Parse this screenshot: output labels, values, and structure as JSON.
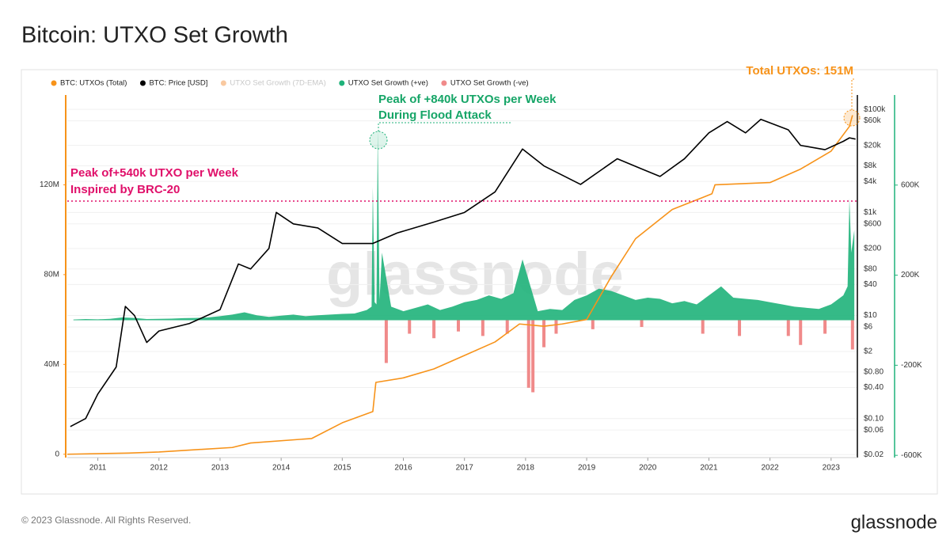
{
  "chart_data": {
    "type": "multi-axis",
    "title": "Bitcoin: UTXO Set Growth",
    "watermark": "glassnode",
    "footer": "© 2023 Glassnode. All Rights Reserved.",
    "logo": "glassnode",
    "annotations": [
      "Peak of +840k UTXOs per Week",
      "During Flood Attack",
      "Peak of+540k UTXO per Week",
      "Inspired by BRC-20",
      "Total UTXOs: 151M"
    ],
    "annotation_colors": [
      "#16a567",
      "#16a567",
      "#e0106a",
      "#e0106a",
      "#f7931a"
    ],
    "xlim": [
      2010.5,
      2023.43
    ],
    "xticks": [
      2011,
      2012,
      2013,
      2014,
      2015,
      2016,
      2017,
      2018,
      2019,
      2020,
      2021,
      2022,
      2023
    ],
    "ylim": [
      -1500000,
      160000000
    ],
    "yticks": [
      0,
      {
        "value": 40000000,
        "label": "40M"
      },
      {
        "value": 80000000,
        "label": "80M"
      },
      {
        "value": 120000000,
        "label": "120M"
      }
    ],
    "y2lim": [
      0.0175,
      190000
    ],
    "y2log": true,
    "y2ticks": [
      {
        "value": 100000,
        "label": "$100k"
      },
      {
        "value": 60000,
        "label": "$60k"
      },
      {
        "value": 20000,
        "label": "$20k"
      },
      {
        "value": 8000,
        "label": "$8k"
      },
      {
        "value": 4000,
        "label": "$4k"
      },
      {
        "value": 1000,
        "label": "$1k"
      },
      {
        "value": 600,
        "label": "$600"
      },
      {
        "value": 200,
        "label": "$200"
      },
      {
        "value": 80,
        "label": "$80"
      },
      {
        "value": 40,
        "label": "$40"
      },
      {
        "value": 10,
        "label": "$10"
      },
      {
        "value": 6,
        "label": "$6"
      },
      {
        "value": 2,
        "label": "$2"
      },
      {
        "value": 0.8,
        "label": "$0.80"
      },
      {
        "value": 0.4,
        "label": "$0.40"
      },
      {
        "value": 0.1,
        "label": "$0.10"
      },
      {
        "value": 0.06,
        "label": "$0.06"
      },
      {
        "value": 0.02,
        "label": "$0.02"
      }
    ],
    "y3lim": [
      -610000,
      1000000
    ],
    "y3ticks": [
      {
        "value": 600000,
        "label": "600K"
      },
      {
        "value": 200000,
        "label": "200K"
      },
      {
        "value": -200000,
        "label": "-200K"
      },
      {
        "value": -600000,
        "label": "-600K"
      }
    ],
    "grid": true,
    "series": [
      {
        "name": "BTC: UTXOs (Total)",
        "color": "#f7931a",
        "axis": "y",
        "style": "line",
        "x": [
          2010.5,
          2011.5,
          2012.0,
          2013.2,
          2013.5,
          2014.5,
          2015.0,
          2015.5,
          2015.55,
          2016.0,
          2016.5,
          2017.0,
          2017.5,
          2017.9,
          2018.3,
          2018.6,
          2019.0,
          2019.4,
          2019.8,
          2020.4,
          2021.05,
          2021.1,
          2022.0,
          2022.5,
          2023.0,
          2023.3,
          2023.35
        ],
        "values": [
          0,
          500000,
          1000000,
          3000000,
          5000000,
          7000000,
          14000000,
          19000000,
          32000000,
          34000000,
          38000000,
          44000000,
          50000000,
          58000000,
          57000000,
          58000000,
          60000000,
          79000000,
          96000000,
          109000000,
          116000000,
          120000000,
          121000000,
          127000000,
          135000000,
          146000000,
          151000000
        ]
      },
      {
        "name": "BTC: Price [USD]",
        "color": "#000000",
        "axis": "y2",
        "style": "line",
        "x": [
          2010.55,
          2010.8,
          2011.0,
          2011.3,
          2011.45,
          2011.6,
          2011.8,
          2012.0,
          2012.5,
          2013.0,
          2013.3,
          2013.5,
          2013.8,
          2013.92,
          2014.2,
          2014.6,
          2015.0,
          2015.5,
          2015.9,
          2016.5,
          2017.0,
          2017.5,
          2017.95,
          2018.3,
          2018.9,
          2019.5,
          2019.9,
          2020.2,
          2020.6,
          2021.0,
          2021.3,
          2021.6,
          2021.85,
          2022.3,
          2022.5,
          2022.9,
          2023.2,
          2023.3,
          2023.4
        ],
        "values": [
          0.07,
          0.1,
          0.3,
          1,
          15,
          10,
          3,
          5,
          7,
          13,
          100,
          80,
          200,
          1000,
          600,
          500,
          250,
          250,
          400,
          650,
          1000,
          2500,
          17000,
          8000,
          3500,
          11000,
          7000,
          5000,
          11000,
          35000,
          58000,
          35000,
          64000,
          40000,
          20000,
          16500,
          24000,
          28000,
          26500
        ]
      },
      {
        "name": "UTXO Set Growth (7D-EMA)",
        "color": "#f9c9a0",
        "axis": "y3",
        "style": "hidden"
      },
      {
        "name": "UTXO Set Growth (+ve)",
        "color": "#1fb27a",
        "axis": "y3",
        "style": "area",
        "x": [
          2010.6,
          2010.8,
          2011.0,
          2011.2,
          2011.4,
          2011.6,
          2011.8,
          2012.0,
          2012.2,
          2012.4,
          2012.6,
          2012.8,
          2013.0,
          2013.2,
          2013.4,
          2013.6,
          2013.8,
          2014.0,
          2014.2,
          2014.4,
          2014.6,
          2014.8,
          2015.0,
          2015.2,
          2015.4,
          2015.48,
          2015.5,
          2015.53,
          2015.56,
          2015.58,
          2015.61,
          2015.65,
          2015.8,
          2016.0,
          2016.2,
          2016.4,
          2016.6,
          2016.8,
          2017.0,
          2017.2,
          2017.4,
          2017.6,
          2017.8,
          2017.95,
          2018.2,
          2018.4,
          2018.6,
          2018.8,
          2019.0,
          2019.2,
          2019.4,
          2019.6,
          2019.8,
          2020.0,
          2020.2,
          2020.4,
          2020.6,
          2020.8,
          2021.0,
          2021.2,
          2021.4,
          2021.6,
          2021.8,
          2022.0,
          2022.2,
          2022.4,
          2022.6,
          2022.8,
          2023.0,
          2023.2,
          2023.27,
          2023.3,
          2023.33,
          2023.38
        ],
        "values": [
          3000,
          5000,
          4000,
          6000,
          12000,
          10000,
          5000,
          6000,
          7000,
          9000,
          10000,
          12000,
          18000,
          25000,
          35000,
          22000,
          15000,
          20000,
          25000,
          18000,
          22000,
          25000,
          28000,
          30000,
          45000,
          60000,
          590000,
          80000,
          70000,
          840000,
          90000,
          300000,
          60000,
          40000,
          55000,
          70000,
          45000,
          60000,
          80000,
          90000,
          110000,
          95000,
          120000,
          270000,
          40000,
          50000,
          45000,
          90000,
          110000,
          140000,
          130000,
          110000,
          90000,
          100000,
          95000,
          75000,
          85000,
          70000,
          110000,
          150000,
          100000,
          95000,
          90000,
          80000,
          70000,
          60000,
          55000,
          50000,
          70000,
          110000,
          150000,
          540000,
          300000,
          400000
        ]
      },
      {
        "name": "UTXO Set Growth (-ve)",
        "color": "#f08a8a",
        "axis": "y3",
        "style": "bar",
        "x": [
          2015.72,
          2016.1,
          2016.5,
          2016.9,
          2017.3,
          2017.7,
          2018.05,
          2018.12,
          2018.3,
          2018.5,
          2019.1,
          2019.9,
          2020.9,
          2021.5,
          2022.3,
          2022.5,
          2022.9,
          2023.35
        ],
        "values": [
          -190000,
          -60000,
          -80000,
          -50000,
          -70000,
          -60000,
          -300000,
          -320000,
          -120000,
          -60000,
          -40000,
          -30000,
          -60000,
          -70000,
          -70000,
          -110000,
          -60000,
          -130000
        ]
      }
    ]
  }
}
